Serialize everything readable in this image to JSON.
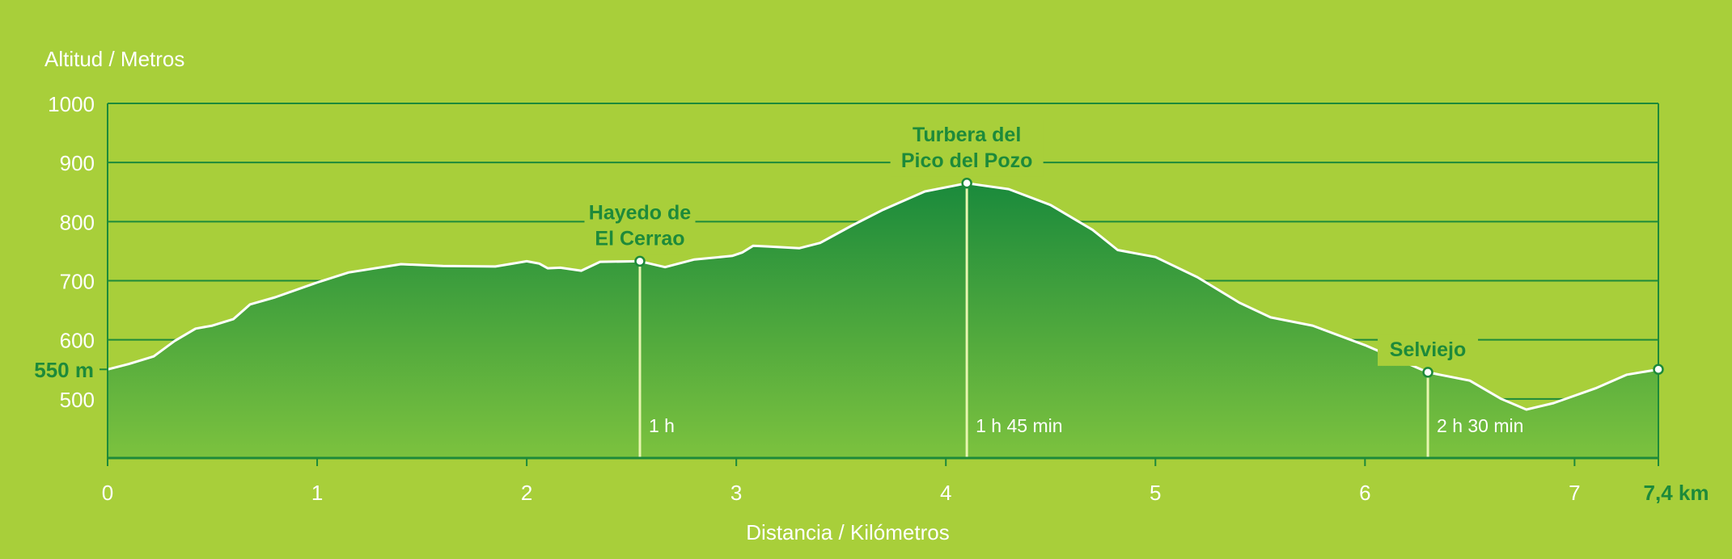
{
  "chart_data": {
    "type": "area",
    "title": "",
    "ylabel": "Altitud / Metros",
    "xlabel": "Distancia / Kilómetros",
    "xlim": [
      0,
      7.4
    ],
    "ylim": [
      400,
      1000
    ],
    "x_ticks": [
      "0",
      "1",
      "2",
      "3",
      "4",
      "5",
      "6",
      "7"
    ],
    "x_end_label": "7,4 km",
    "y_ticks": [
      "1000",
      "900",
      "800",
      "700",
      "600",
      "500"
    ],
    "start_altitude_label": "550 m",
    "start_altitude": 550,
    "grid": true,
    "colors": {
      "background": "#a8cf3a",
      "fill_top": "#1a8a3c",
      "fill_bottom": "#7cc23e",
      "profile_line": "#ffffff",
      "grid": "#1d8a3a",
      "label": "#1d8a3a"
    },
    "profile": [
      {
        "x": 0.0,
        "y": 550
      },
      {
        "x": 0.1,
        "y": 559
      },
      {
        "x": 0.22,
        "y": 572
      },
      {
        "x": 0.32,
        "y": 598
      },
      {
        "x": 0.42,
        "y": 619
      },
      {
        "x": 0.5,
        "y": 624
      },
      {
        "x": 0.6,
        "y": 635
      },
      {
        "x": 0.68,
        "y": 660
      },
      {
        "x": 0.8,
        "y": 672
      },
      {
        "x": 1.0,
        "y": 697
      },
      {
        "x": 1.15,
        "y": 714
      },
      {
        "x": 1.4,
        "y": 728
      },
      {
        "x": 1.6,
        "y": 725
      },
      {
        "x": 1.85,
        "y": 724
      },
      {
        "x": 2.0,
        "y": 733
      },
      {
        "x": 2.06,
        "y": 729
      },
      {
        "x": 2.1,
        "y": 721
      },
      {
        "x": 2.16,
        "y": 722
      },
      {
        "x": 2.26,
        "y": 717
      },
      {
        "x": 2.35,
        "y": 732
      },
      {
        "x": 2.54,
        "y": 733
      },
      {
        "x": 2.66,
        "y": 723
      },
      {
        "x": 2.8,
        "y": 736
      },
      {
        "x": 2.98,
        "y": 742
      },
      {
        "x": 3.03,
        "y": 748
      },
      {
        "x": 3.08,
        "y": 759
      },
      {
        "x": 3.15,
        "y": 758
      },
      {
        "x": 3.3,
        "y": 755
      },
      {
        "x": 3.4,
        "y": 764
      },
      {
        "x": 3.55,
        "y": 793
      },
      {
        "x": 3.7,
        "y": 820
      },
      {
        "x": 3.9,
        "y": 851
      },
      {
        "x": 4.1,
        "y": 865
      },
      {
        "x": 4.3,
        "y": 855
      },
      {
        "x": 4.5,
        "y": 828
      },
      {
        "x": 4.7,
        "y": 786
      },
      {
        "x": 4.82,
        "y": 752
      },
      {
        "x": 5.0,
        "y": 740
      },
      {
        "x": 5.2,
        "y": 706
      },
      {
        "x": 5.4,
        "y": 663
      },
      {
        "x": 5.55,
        "y": 638
      },
      {
        "x": 5.75,
        "y": 624
      },
      {
        "x": 6.0,
        "y": 591
      },
      {
        "x": 6.3,
        "y": 545
      },
      {
        "x": 6.5,
        "y": 531
      },
      {
        "x": 6.65,
        "y": 500
      },
      {
        "x": 6.77,
        "y": 482
      },
      {
        "x": 6.9,
        "y": 493
      },
      {
        "x": 7.1,
        "y": 518
      },
      {
        "x": 7.25,
        "y": 541
      },
      {
        "x": 7.4,
        "y": 550
      }
    ],
    "waypoints": [
      {
        "name_line1": "Hayedo de",
        "name_line2": "El Cerrao",
        "x": 2.54,
        "y": 733,
        "time": "1 h"
      },
      {
        "name_line1": "Turbera del",
        "name_line2": "Pico del Pozo",
        "x": 4.1,
        "y": 865,
        "time": "1 h 45 min"
      },
      {
        "name_line1": "Selviejo",
        "name_line2": "",
        "x": 6.3,
        "y": 545,
        "time": "2 h 30 min"
      }
    ]
  }
}
